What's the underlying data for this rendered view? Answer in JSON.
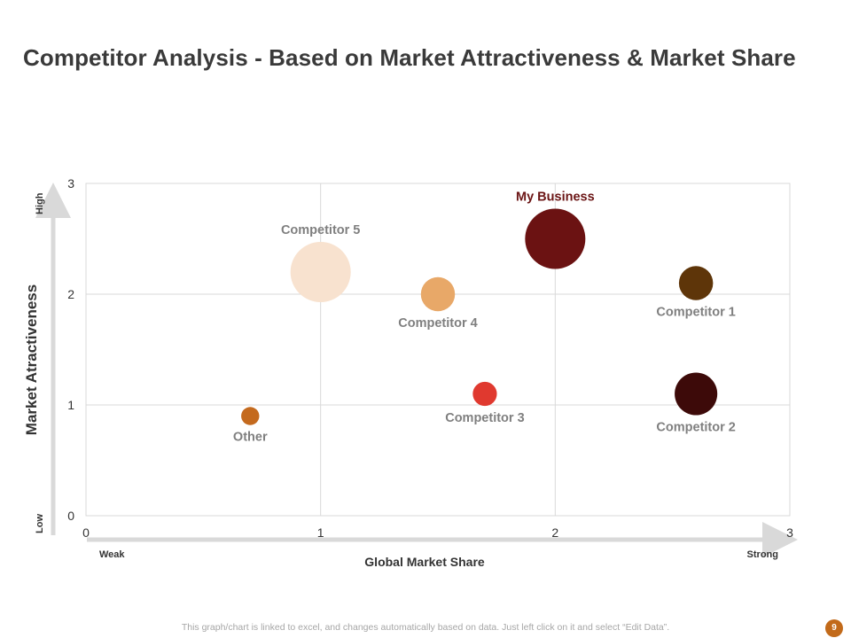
{
  "page": {
    "title": "Competitor Analysis - Based on Market Attractiveness & Market Share",
    "footer": "This graph/chart is linked to excel, and changes automatically based on data. Just left click on it and select “Edit Data”.",
    "page_number": "9"
  },
  "chart_data": {
    "type": "bubble",
    "title": "",
    "xlabel": "Global Market Share",
    "ylabel": "Market Atractiveness",
    "x_low_label": "Weak",
    "x_high_label": "Strong",
    "y_low_label": "Low",
    "y_high_label": "High",
    "xlim": [
      0,
      3
    ],
    "ylim": [
      0,
      3
    ],
    "xticks": [
      "0",
      "1",
      "2",
      "3"
    ],
    "yticks": [
      "0",
      "1",
      "2",
      "3"
    ],
    "grid": true,
    "points": [
      {
        "name": "My Business",
        "x": 2.0,
        "y": 2.5,
        "size": 100,
        "color": "#6b1212",
        "label_pos": "above",
        "highlight": true
      },
      {
        "name": "Competitor 5",
        "x": 1.0,
        "y": 2.2,
        "size": 100,
        "color": "#f8e2cf",
        "label_pos": "above",
        "highlight": false
      },
      {
        "name": "Competitor 4",
        "x": 1.5,
        "y": 2.0,
        "size": 32,
        "color": "#e8a868",
        "label_pos": "below",
        "highlight": false
      },
      {
        "name": "Competitor 1",
        "x": 2.6,
        "y": 2.1,
        "size": 32,
        "color": "#5e3509",
        "label_pos": "below",
        "highlight": false
      },
      {
        "name": "Competitor 3",
        "x": 1.7,
        "y": 1.1,
        "size": 16,
        "color": "#e0392f",
        "label_pos": "below",
        "highlight": false
      },
      {
        "name": "Competitor 2",
        "x": 2.6,
        "y": 1.1,
        "size": 50,
        "color": "#3d0a09",
        "label_pos": "below",
        "highlight": false
      },
      {
        "name": "Other",
        "x": 0.7,
        "y": 0.9,
        "size": 9,
        "color": "#c46a1e",
        "label_pos": "below",
        "highlight": false
      }
    ]
  }
}
